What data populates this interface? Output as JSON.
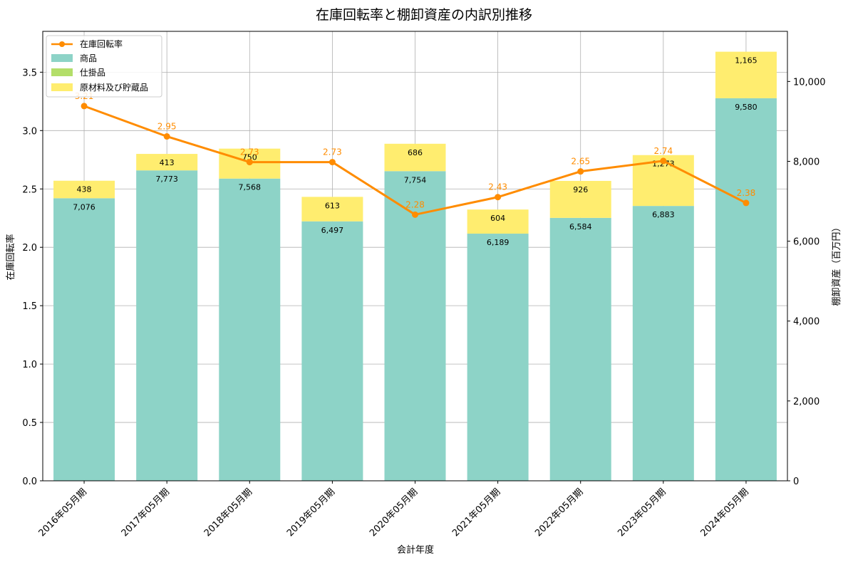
{
  "chart_data": {
    "type": "bar",
    "title": "在庫回転率と棚卸資産の内訳別推移",
    "xlabel": "会計年度",
    "ylabel_left": "在庫回転率",
    "ylabel_right": "棚卸資産（百万円）",
    "categories": [
      "2016年05月期",
      "2017年05月期",
      "2018年05月期",
      "2019年05月期",
      "2020年05月期",
      "2021年05月期",
      "2022年05月期",
      "2023年05月期",
      "2024年05月期"
    ],
    "stacked_series": [
      {
        "name": "商品",
        "color": "#8dd3c7",
        "values": [
          7076,
          7773,
          7568,
          6497,
          7754,
          6189,
          6584,
          6883,
          9580
        ],
        "labels": [
          "7,076",
          "7,773",
          "7,568",
          "6,497",
          "7,754",
          "6,189",
          "6,584",
          "6,883",
          "9,580"
        ]
      },
      {
        "name": "仕掛品",
        "color": "#b3de69",
        "values": [
          0,
          0,
          0,
          0,
          0,
          0,
          0,
          0,
          0
        ],
        "labels": []
      },
      {
        "name": "原材料及び貯蔵品",
        "color": "#ffed6f",
        "values": [
          438,
          413,
          750,
          613,
          686,
          604,
          926,
          1273,
          1165
        ],
        "labels": [
          "438",
          "413",
          "750",
          "613",
          "686",
          "604",
          "926",
          "1,273",
          "1,165"
        ]
      }
    ],
    "line_series": {
      "name": "在庫回転率",
      "color": "#ff8c00",
      "values": [
        3.21,
        2.95,
        2.73,
        2.73,
        2.28,
        2.43,
        2.65,
        2.74,
        2.38
      ],
      "labels": [
        "3.21",
        "2.95",
        "2.73",
        "2.73",
        "2.28",
        "2.43",
        "2.65",
        "2.74",
        "2.38"
      ]
    },
    "ylim_left": [
      0,
      3.85
    ],
    "ylim_right": [
      0,
      11255
    ],
    "yticks_left": [
      0.0,
      0.5,
      1.0,
      1.5,
      2.0,
      2.5,
      3.0,
      3.5
    ],
    "yticks_left_labels": [
      "0.0",
      "0.5",
      "1.0",
      "1.5",
      "2.0",
      "2.5",
      "3.0",
      "3.5"
    ],
    "yticks_right": [
      0,
      2000,
      4000,
      6000,
      8000,
      10000
    ],
    "yticks_right_labels": [
      "0",
      "2,000",
      "4,000",
      "6,000",
      "8,000",
      "10,000"
    ],
    "grid": true,
    "legend_position": "top-left"
  }
}
